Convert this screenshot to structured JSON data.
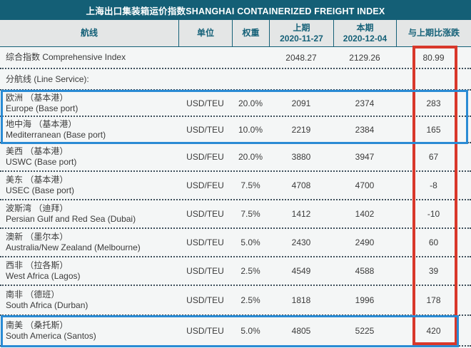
{
  "title": "上海出口集装箱运价指数SHANGHAI CONTAINERIZED FREIGHT INDEX",
  "header": {
    "route": "航线",
    "unit": "单位",
    "weight": "权重",
    "prev_label": "上期",
    "prev_date": "2020-11-27",
    "curr_label": "本期",
    "curr_date": "2020-12-04",
    "change": "与上期比涨跌"
  },
  "chart_data": {
    "type": "table",
    "columns": [
      "航线",
      "单位",
      "权重",
      "上期 2020-11-27",
      "本期 2020-12-04",
      "与上期比涨跌"
    ],
    "rows": [
      {
        "cn": "综合指数 Comprehensive Index",
        "en": "",
        "unit": "",
        "weight": "",
        "prev": "2048.27",
        "curr": "2129.26",
        "change": "80.99"
      },
      {
        "cn": "分航线 (Line Service):",
        "en": "",
        "unit": "",
        "weight": "",
        "prev": "",
        "curr": "",
        "change": ""
      },
      {
        "cn": "欧洲 （基本港）",
        "en": "Europe (Base port)",
        "unit": "USD/TEU",
        "weight": "20.0%",
        "prev": "2091",
        "curr": "2374",
        "change": "283"
      },
      {
        "cn": "地中海 （基本港）",
        "en": "Mediterranean (Base port)",
        "unit": "USD/TEU",
        "weight": "10.0%",
        "prev": "2219",
        "curr": "2384",
        "change": "165"
      },
      {
        "cn": "美西 （基本港）",
        "en": "USWC (Base port)",
        "unit": "USD/FEU",
        "weight": "20.0%",
        "prev": "3880",
        "curr": "3947",
        "change": "67"
      },
      {
        "cn": "美东 （基本港）",
        "en": "USEC (Base port)",
        "unit": "USD/FEU",
        "weight": "7.5%",
        "prev": "4708",
        "curr": "4700",
        "change": "-8"
      },
      {
        "cn": "波斯湾 （迪拜）",
        "en": "Persian Gulf and Red Sea (Dubai)",
        "unit": "USD/TEU",
        "weight": "7.5%",
        "prev": "1412",
        "curr": "1402",
        "change": "-10"
      },
      {
        "cn": "澳新 （墨尔本）",
        "en": "Australia/New Zealand (Melbourne)",
        "unit": "USD/TEU",
        "weight": "5.0%",
        "prev": "2430",
        "curr": "2490",
        "change": "60"
      },
      {
        "cn": "西非 （拉各斯）",
        "en": "West Africa (Lagos)",
        "unit": "USD/TEU",
        "weight": "2.5%",
        "prev": "4549",
        "curr": "4588",
        "change": "39"
      },
      {
        "cn": "南非 （德班）",
        "en": "South Africa (Durban)",
        "unit": "USD/TEU",
        "weight": "2.5%",
        "prev": "1818",
        "curr": "1996",
        "change": "178"
      },
      {
        "cn": "南美 （桑托斯）",
        "en": "South America (Santos)",
        "unit": "USD/TEU",
        "weight": "5.0%",
        "prev": "4805",
        "curr": "5225",
        "change": "420"
      }
    ]
  },
  "annotations": {
    "red_box_color": "#d8382b",
    "blue_box_color": "#2a8bd4"
  },
  "colors": {
    "title_bar": "#145f76",
    "header_bg": "#e4e6e6",
    "header_text": "#156178",
    "body_bg": "#f4f6f6",
    "body_text": "#3b3b3b"
  }
}
